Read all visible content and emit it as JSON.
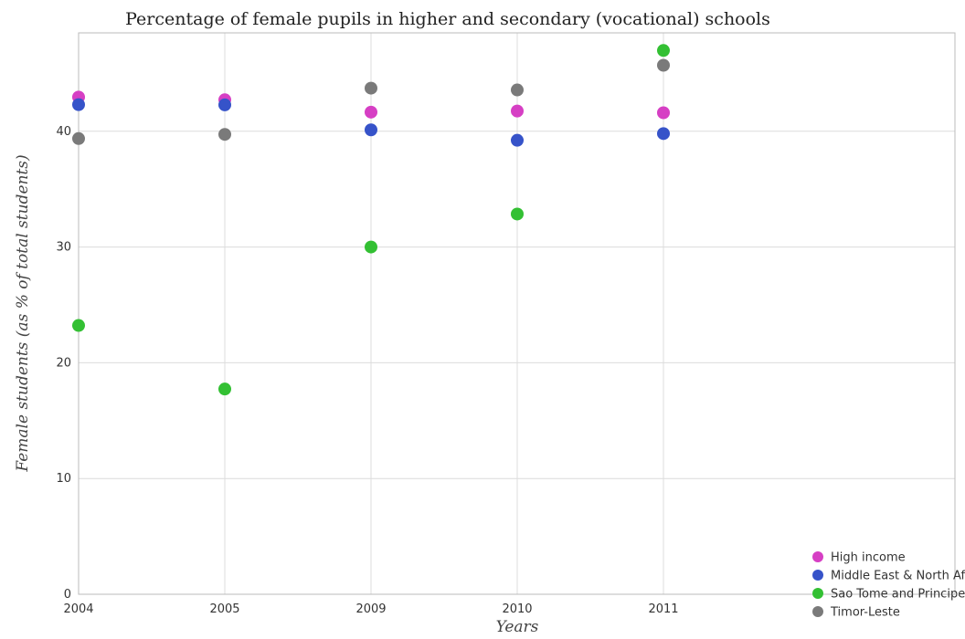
{
  "chart_data": {
    "type": "scatter",
    "title": "Percentage of female pupils in higher and secondary (vocational) schools",
    "xlabel": "Years",
    "ylabel": "Female students (as % of total students)",
    "categories": [
      "2004",
      "2005",
      "2009",
      "2010",
      "2011"
    ],
    "ylim": [
      0,
      48.5
    ],
    "yticks": [
      0,
      10,
      20,
      30,
      40
    ],
    "grid": true,
    "legend_position": "bottom-right",
    "series": [
      {
        "name": "High income",
        "color": "#d63fc4",
        "values": [
          42.95,
          42.72,
          41.65,
          41.75,
          41.6
        ]
      },
      {
        "name": "Middle East & North Africa (developing only)",
        "color": "#3653c9",
        "values": [
          42.3,
          42.28,
          40.12,
          39.22,
          39.8
        ]
      },
      {
        "name": "Sao Tome and Principe",
        "color": "#33c033",
        "values": [
          23.22,
          17.73,
          30.0,
          32.85,
          46.98
        ]
      },
      {
        "name": "Timor-Leste",
        "color": "#7a7a7a",
        "values": [
          39.37,
          39.73,
          43.72,
          43.57,
          45.7
        ]
      }
    ]
  }
}
